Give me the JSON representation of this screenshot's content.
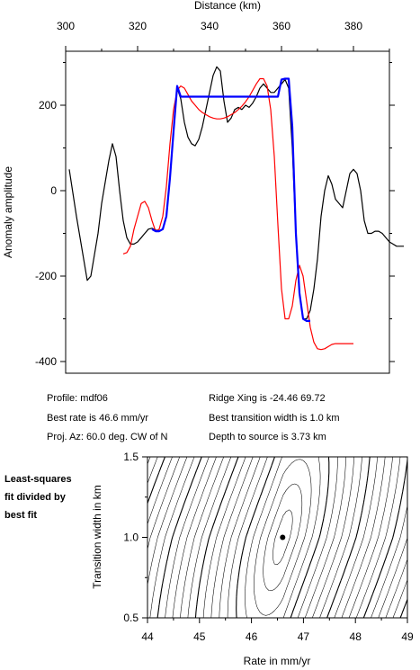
{
  "chart_data": [
    {
      "type": "line",
      "title": "",
      "xlabel": "Distance (km)",
      "ylabel": "Anomaly amplitude",
      "xlim": [
        300,
        395
      ],
      "ylim": [
        -410,
        320
      ],
      "x_ticks": [
        300,
        320,
        340,
        360,
        380
      ],
      "y_ticks": [
        200,
        0,
        -200,
        -400
      ],
      "x_axis_position": "top",
      "grid": false,
      "series": [
        {
          "color": "#000000",
          "x": [
            301,
            303,
            305,
            306,
            307,
            308,
            309,
            310,
            311,
            312,
            313,
            314,
            315,
            316,
            317,
            318,
            319,
            320,
            321,
            322,
            323,
            324,
            325,
            326,
            327,
            328,
            329,
            330,
            331,
            332,
            333,
            334,
            335,
            336,
            337,
            338,
            339,
            340,
            341,
            342,
            343,
            344,
            345,
            346,
            347,
            348,
            349,
            350,
            351,
            352,
            353,
            354,
            355,
            356,
            357,
            358,
            359,
            360,
            361,
            362,
            363,
            364,
            365,
            366,
            367,
            368,
            369,
            370,
            371,
            372,
            373,
            374,
            375,
            376,
            377,
            378,
            379,
            380,
            381,
            382,
            383,
            384,
            385,
            386,
            387,
            388,
            389,
            390,
            391,
            392,
            393,
            394
          ],
          "y": [
            50,
            -60,
            -160,
            -210,
            -200,
            -150,
            -100,
            -30,
            20,
            70,
            110,
            80,
            0,
            -70,
            -110,
            -125,
            -125,
            -120,
            -110,
            -100,
            -90,
            -88,
            -92,
            -95,
            -90,
            -60,
            30,
            140,
            240,
            215,
            160,
            125,
            110,
            105,
            120,
            150,
            190,
            230,
            270,
            290,
            280,
            210,
            160,
            170,
            190,
            195,
            190,
            200,
            195,
            205,
            220,
            240,
            250,
            240,
            230,
            230,
            240,
            250,
            260,
            240,
            100,
            -100,
            -240,
            -300,
            -300,
            -280,
            -230,
            -160,
            -60,
            0,
            35,
            15,
            -20,
            -30,
            -40,
            0,
            40,
            50,
            40,
            0,
            -70,
            -100,
            -100,
            -95,
            -95,
            -100,
            -110,
            -120,
            -125,
            -130,
            -130,
            -130
          ],
          "x_plot_end": 394
        },
        {
          "color": "#ff0000",
          "x": [
            316,
            317,
            318,
            319,
            320,
            321,
            322,
            323,
            324,
            325,
            326,
            327,
            328,
            329,
            330,
            331,
            332,
            333,
            334,
            335,
            336,
            337,
            338,
            339,
            340,
            341,
            342,
            343,
            344,
            345,
            346,
            347,
            348,
            349,
            350,
            351,
            352,
            353,
            354,
            355,
            356,
            357,
            358,
            359,
            360,
            361,
            362,
            363,
            364,
            365,
            366,
            367,
            368,
            369,
            370,
            371,
            372,
            373,
            374,
            375,
            376,
            377,
            378,
            379,
            380
          ],
          "y": [
            -148,
            -145,
            -130,
            -90,
            -60,
            -30,
            -25,
            -40,
            -70,
            -95,
            -90,
            -60,
            10,
            110,
            190,
            235,
            245,
            240,
            225,
            210,
            200,
            190,
            183,
            178,
            173,
            170,
            168,
            168,
            170,
            173,
            178,
            183,
            190,
            198,
            208,
            220,
            235,
            250,
            262,
            262,
            245,
            190,
            80,
            -80,
            -230,
            -300,
            -300,
            -270,
            -210,
            -175,
            -200,
            -260,
            -320,
            -355,
            -370,
            -372,
            -370,
            -365,
            -360,
            -358,
            -358,
            -358,
            -358,
            -358,
            -358
          ]
        },
        {
          "color": "#0000ff",
          "x": [
            324,
            325,
            326,
            327,
            328,
            329,
            330,
            331,
            332,
            333,
            334,
            335,
            336,
            337,
            338,
            339,
            340,
            341,
            342,
            343,
            344,
            345,
            346,
            347,
            348,
            349,
            350,
            351,
            352,
            353,
            354,
            355,
            356,
            357,
            358,
            359,
            360,
            361,
            362,
            363,
            364,
            365,
            366,
            367,
            368
          ],
          "y": [
            -90,
            -95,
            -95,
            -90,
            -60,
            30,
            140,
            245,
            220,
            220,
            220,
            220,
            220,
            220,
            220,
            220,
            220,
            220,
            220,
            220,
            220,
            220,
            220,
            220,
            220,
            220,
            220,
            220,
            220,
            220,
            220,
            220,
            220,
            220,
            220,
            220,
            260,
            262,
            262,
            150,
            -100,
            -240,
            -300,
            -305,
            -305
          ]
        }
      ]
    },
    {
      "type": "contour",
      "title": "",
      "xlabel": "Rate in mm/yr",
      "ylabel": "Transition width in km",
      "xlim": [
        44,
        49
      ],
      "ylim": [
        0.5,
        1.5
      ],
      "x_ticks": [
        44,
        45,
        46,
        47,
        48,
        49
      ],
      "y_ticks": [
        1.5,
        1.0,
        0.5
      ],
      "best_fit_point": {
        "rate": 46.6,
        "width": 1.0
      },
      "grid": false
    }
  ],
  "info": {
    "profile": "Profile: mdf06",
    "best_rate": "Best rate is 46.6 mm/yr",
    "proj_az": "Proj. Az: 60.0 deg. CW of N",
    "ridge_xing": "Ridge Xing is -24.46 69.72",
    "best_transition": "Best transition width is 1.0 km",
    "depth_source": "Depth to source is   3.73 km"
  },
  "contour_note": {
    "line1": "Least-squares",
    "line2": "fit divided by",
    "line3": "best fit"
  }
}
